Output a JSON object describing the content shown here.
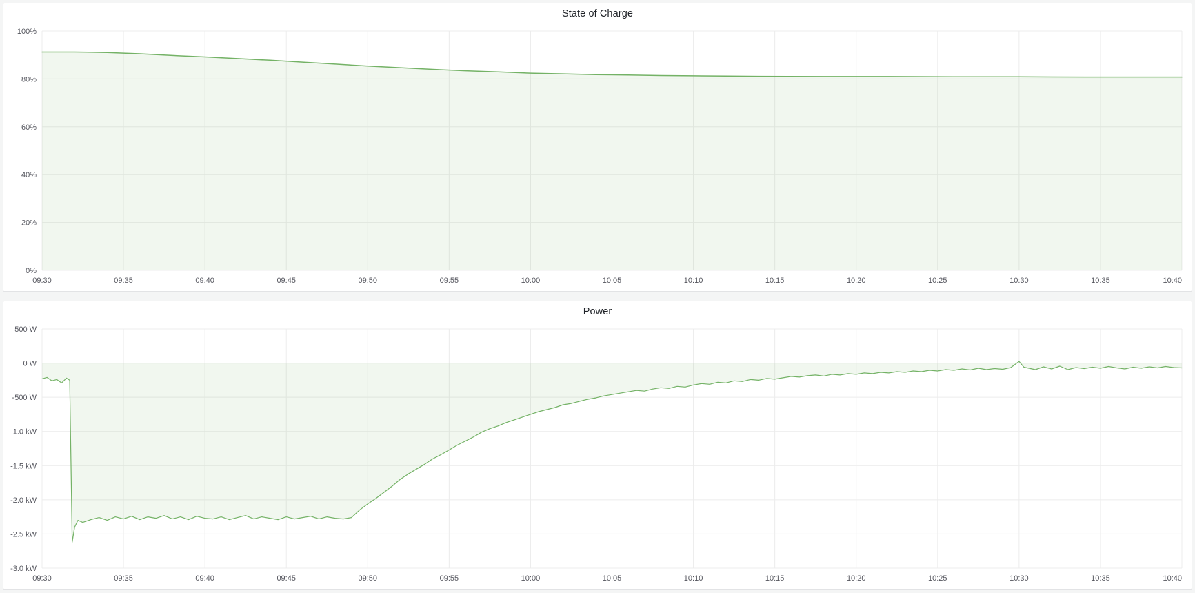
{
  "page": {
    "background_color": "#f4f5f5",
    "panel_background": "#ffffff",
    "grid_color": "#ececec",
    "tick_text_color": "#55565e"
  },
  "chart_data": [
    {
      "id": "state-of-charge",
      "type": "area",
      "title": "State of Charge",
      "line_color": "#74b266",
      "fill_color": "rgba(116,178,102,0.10)",
      "line_width": 1.5,
      "x_range": [
        0,
        70
      ],
      "y_range": [
        0,
        100
      ],
      "legend": "off",
      "grid": "on",
      "x_ticks": [
        {
          "v": 0,
          "label": "09:30"
        },
        {
          "v": 5,
          "label": "09:35"
        },
        {
          "v": 10,
          "label": "09:40"
        },
        {
          "v": 15,
          "label": "09:45"
        },
        {
          "v": 20,
          "label": "09:50"
        },
        {
          "v": 25,
          "label": "09:55"
        },
        {
          "v": 30,
          "label": "10:00"
        },
        {
          "v": 35,
          "label": "10:05"
        },
        {
          "v": 40,
          "label": "10:10"
        },
        {
          "v": 45,
          "label": "10:15"
        },
        {
          "v": 50,
          "label": "10:20"
        },
        {
          "v": 55,
          "label": "10:25"
        },
        {
          "v": 60,
          "label": "10:30"
        },
        {
          "v": 65,
          "label": "10:35"
        },
        {
          "v": 70,
          "label": "10:40"
        }
      ],
      "y_ticks": [
        {
          "v": 100,
          "label": "100%"
        },
        {
          "v": 80,
          "label": "80%"
        },
        {
          "v": 60,
          "label": "60%"
        },
        {
          "v": 40,
          "label": "40%"
        },
        {
          "v": 20,
          "label": "20%"
        },
        {
          "v": 0,
          "label": "0%"
        }
      ],
      "series": [
        {
          "name": "State of Charge",
          "unit": "%",
          "points": [
            [
              0,
              91.2
            ],
            [
              2,
              91.2
            ],
            [
              4,
              91
            ],
            [
              6,
              90.5
            ],
            [
              8,
              89.8
            ],
            [
              10,
              89.2
            ],
            [
              12,
              88.5
            ],
            [
              14,
              87.8
            ],
            [
              16,
              87
            ],
            [
              18,
              86.2
            ],
            [
              20,
              85.4
            ],
            [
              22,
              84.7
            ],
            [
              24,
              84
            ],
            [
              26,
              83.4
            ],
            [
              28,
              82.9
            ],
            [
              30,
              82.4
            ],
            [
              32,
              82.1
            ],
            [
              34,
              81.8
            ],
            [
              36,
              81.6
            ],
            [
              38,
              81.4
            ],
            [
              40,
              81.3
            ],
            [
              42,
              81.2
            ],
            [
              44,
              81.1
            ],
            [
              48,
              81
            ],
            [
              52,
              81
            ],
            [
              56,
              80.9
            ],
            [
              60,
              80.9
            ],
            [
              64,
              80.8
            ],
            [
              68,
              80.8
            ],
            [
              70,
              80.8
            ]
          ]
        }
      ]
    },
    {
      "id": "power",
      "type": "area",
      "title": "Power",
      "line_color": "#74b266",
      "fill_color": "rgba(116,178,102,0.10)",
      "line_width": 1.2,
      "x_range": [
        0,
        70
      ],
      "y_range": [
        -3000,
        500
      ],
      "legend": "off",
      "grid": "on",
      "x_ticks": [
        {
          "v": 0,
          "label": "09:30"
        },
        {
          "v": 5,
          "label": "09:35"
        },
        {
          "v": 10,
          "label": "09:40"
        },
        {
          "v": 15,
          "label": "09:45"
        },
        {
          "v": 20,
          "label": "09:50"
        },
        {
          "v": 25,
          "label": "09:55"
        },
        {
          "v": 30,
          "label": "10:00"
        },
        {
          "v": 35,
          "label": "10:05"
        },
        {
          "v": 40,
          "label": "10:10"
        },
        {
          "v": 45,
          "label": "10:15"
        },
        {
          "v": 50,
          "label": "10:20"
        },
        {
          "v": 55,
          "label": "10:25"
        },
        {
          "v": 60,
          "label": "10:30"
        },
        {
          "v": 65,
          "label": "10:35"
        },
        {
          "v": 70,
          "label": "10:40"
        }
      ],
      "y_ticks": [
        {
          "v": 500,
          "label": "500 W"
        },
        {
          "v": 0,
          "label": "0 W"
        },
        {
          "v": -500,
          "label": "-500 W"
        },
        {
          "v": -1000,
          "label": "-1.0 kW"
        },
        {
          "v": -1500,
          "label": "-1.5 kW"
        },
        {
          "v": -2000,
          "label": "-2.0 kW"
        },
        {
          "v": -2500,
          "label": "-2.5 kW"
        },
        {
          "v": -3000,
          "label": "-3.0 kW"
        }
      ],
      "series": [
        {
          "name": "Power",
          "unit": "W",
          "points": [
            [
              0,
              -230
            ],
            [
              0.3,
              -210
            ],
            [
              0.6,
              -260
            ],
            [
              0.9,
              -240
            ],
            [
              1.2,
              -290
            ],
            [
              1.5,
              -220
            ],
            [
              1.7,
              -250
            ],
            [
              1.85,
              -2620
            ],
            [
              2,
              -2400
            ],
            [
              2.2,
              -2300
            ],
            [
              2.5,
              -2330
            ],
            [
              3,
              -2290
            ],
            [
              3.5,
              -2260
            ],
            [
              4,
              -2300
            ],
            [
              4.5,
              -2250
            ],
            [
              5,
              -2280
            ],
            [
              5.5,
              -2240
            ],
            [
              6,
              -2290
            ],
            [
              6.5,
              -2250
            ],
            [
              7,
              -2270
            ],
            [
              7.5,
              -2230
            ],
            [
              8,
              -2280
            ],
            [
              8.5,
              -2250
            ],
            [
              9,
              -2290
            ],
            [
              9.5,
              -2240
            ],
            [
              10,
              -2270
            ],
            [
              10.5,
              -2280
            ],
            [
              11,
              -2250
            ],
            [
              11.5,
              -2290
            ],
            [
              12,
              -2260
            ],
            [
              12.5,
              -2230
            ],
            [
              13,
              -2280
            ],
            [
              13.5,
              -2250
            ],
            [
              14,
              -2270
            ],
            [
              14.5,
              -2290
            ],
            [
              15,
              -2250
            ],
            [
              15.5,
              -2280
            ],
            [
              16,
              -2260
            ],
            [
              16.5,
              -2240
            ],
            [
              17,
              -2280
            ],
            [
              17.5,
              -2250
            ],
            [
              18,
              -2270
            ],
            [
              18.5,
              -2280
            ],
            [
              19,
              -2260
            ],
            [
              19.5,
              -2150
            ],
            [
              20,
              -2060
            ],
            [
              20.5,
              -1980
            ],
            [
              21,
              -1890
            ],
            [
              21.5,
              -1800
            ],
            [
              22,
              -1700
            ],
            [
              22.5,
              -1620
            ],
            [
              23,
              -1550
            ],
            [
              23.5,
              -1480
            ],
            [
              24,
              -1400
            ],
            [
              24.5,
              -1340
            ],
            [
              25,
              -1270
            ],
            [
              25.5,
              -1200
            ],
            [
              26,
              -1140
            ],
            [
              26.5,
              -1080
            ],
            [
              27,
              -1010
            ],
            [
              27.5,
              -960
            ],
            [
              28,
              -920
            ],
            [
              28.5,
              -870
            ],
            [
              29,
              -830
            ],
            [
              29.5,
              -790
            ],
            [
              30,
              -750
            ],
            [
              30.5,
              -710
            ],
            [
              31,
              -680
            ],
            [
              31.5,
              -650
            ],
            [
              32,
              -610
            ],
            [
              32.5,
              -590
            ],
            [
              33,
              -560
            ],
            [
              33.5,
              -530
            ],
            [
              34,
              -510
            ],
            [
              34.5,
              -480
            ],
            [
              35,
              -460
            ],
            [
              35.5,
              -440
            ],
            [
              36,
              -420
            ],
            [
              36.5,
              -400
            ],
            [
              37,
              -410
            ],
            [
              37.5,
              -380
            ],
            [
              38,
              -360
            ],
            [
              38.5,
              -370
            ],
            [
              39,
              -340
            ],
            [
              39.5,
              -350
            ],
            [
              40,
              -320
            ],
            [
              40.5,
              -300
            ],
            [
              41,
              -310
            ],
            [
              41.5,
              -280
            ],
            [
              42,
              -290
            ],
            [
              42.5,
              -260
            ],
            [
              43,
              -270
            ],
            [
              43.5,
              -240
            ],
            [
              44,
              -250
            ],
            [
              44.5,
              -225
            ],
            [
              45,
              -235
            ],
            [
              45.5,
              -215
            ],
            [
              46,
              -195
            ],
            [
              46.5,
              -205
            ],
            [
              47,
              -185
            ],
            [
              47.5,
              -175
            ],
            [
              48,
              -190
            ],
            [
              48.5,
              -165
            ],
            [
              49,
              -175
            ],
            [
              49.5,
              -155
            ],
            [
              50,
              -165
            ],
            [
              50.5,
              -145
            ],
            [
              51,
              -155
            ],
            [
              51.5,
              -135
            ],
            [
              52,
              -145
            ],
            [
              52.5,
              -125
            ],
            [
              53,
              -135
            ],
            [
              53.5,
              -115
            ],
            [
              54,
              -125
            ],
            [
              54.5,
              -105
            ],
            [
              55,
              -115
            ],
            [
              55.5,
              -95
            ],
            [
              56,
              -105
            ],
            [
              56.5,
              -85
            ],
            [
              57,
              -100
            ],
            [
              57.5,
              -75
            ],
            [
              58,
              -95
            ],
            [
              58.5,
              -80
            ],
            [
              59,
              -90
            ],
            [
              59.5,
              -65
            ],
            [
              60,
              25
            ],
            [
              60.3,
              -60
            ],
            [
              61,
              -95
            ],
            [
              61.5,
              -55
            ],
            [
              62,
              -85
            ],
            [
              62.5,
              -45
            ],
            [
              63,
              -95
            ],
            [
              63.5,
              -65
            ],
            [
              64,
              -80
            ],
            [
              64.5,
              -60
            ],
            [
              65,
              -75
            ],
            [
              65.5,
              -50
            ],
            [
              66,
              -70
            ],
            [
              66.5,
              -85
            ],
            [
              67,
              -60
            ],
            [
              67.5,
              -75
            ],
            [
              68,
              -55
            ],
            [
              68.5,
              -70
            ],
            [
              69,
              -50
            ],
            [
              69.5,
              -65
            ],
            [
              70,
              -70
            ]
          ]
        }
      ]
    }
  ]
}
